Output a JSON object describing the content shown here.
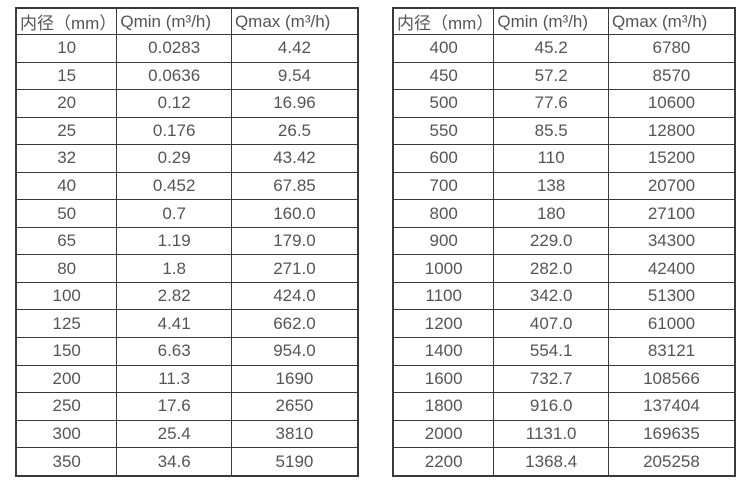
{
  "page": {
    "background_color": "#ffffff",
    "border_color": "#3a3a3a",
    "text_color": "#555555"
  },
  "tables": [
    {
      "name": "small-diameters",
      "headers": [
        "内径（mm）",
        "Qmin (m³/h)",
        "Qmax (m³/h)"
      ],
      "rows": [
        [
          "10",
          "0.0283",
          "4.42"
        ],
        [
          "15",
          "0.0636",
          "9.54"
        ],
        [
          "20",
          "0.12",
          "16.96"
        ],
        [
          "25",
          "0.176",
          "26.5"
        ],
        [
          "32",
          "0.29",
          "43.42"
        ],
        [
          "40",
          "0.452",
          "67.85"
        ],
        [
          "50",
          "0.7",
          "160.0"
        ],
        [
          "65",
          "1.19",
          "179.0"
        ],
        [
          "80",
          "1.8",
          "271.0"
        ],
        [
          "100",
          "2.82",
          "424.0"
        ],
        [
          "125",
          "4.41",
          "662.0"
        ],
        [
          "150",
          "6.63",
          "954.0"
        ],
        [
          "200",
          "11.3",
          "1690"
        ],
        [
          "250",
          "17.6",
          "2650"
        ],
        [
          "300",
          "25.4",
          "3810"
        ],
        [
          "350",
          "34.6",
          "5190"
        ]
      ]
    },
    {
      "name": "large-diameters",
      "headers": [
        "内径（mm）",
        "Qmin (m³/h)",
        "Qmax (m³/h)"
      ],
      "rows": [
        [
          "400",
          "45.2",
          "6780"
        ],
        [
          "450",
          "57.2",
          "8570"
        ],
        [
          "500",
          "77.6",
          "10600"
        ],
        [
          "550",
          "85.5",
          "12800"
        ],
        [
          "600",
          "110",
          "15200"
        ],
        [
          "700",
          "138",
          "20700"
        ],
        [
          "800",
          "180",
          "27100"
        ],
        [
          "900",
          "229.0",
          "34300"
        ],
        [
          "1000",
          "282.0",
          "42400"
        ],
        [
          "1100",
          "342.0",
          "51300"
        ],
        [
          "1200",
          "407.0",
          "61000"
        ],
        [
          "1400",
          "554.1",
          "83121"
        ],
        [
          "1600",
          "732.7",
          "108566"
        ],
        [
          "1800",
          "916.0",
          "137404"
        ],
        [
          "2000",
          "1131.0",
          "169635"
        ],
        [
          "2200",
          "1368.4",
          "205258"
        ]
      ]
    }
  ]
}
